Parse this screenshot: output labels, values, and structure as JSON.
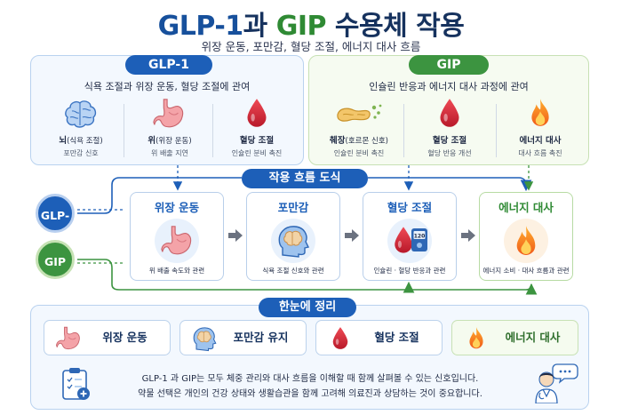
{
  "title": {
    "part1": "GLP-1",
    "part2": "과 ",
    "part3": "GIP",
    "part4": " 수용체 작용"
  },
  "subtitle": "위장 운동, 포만감, 혈당 조절, 에너지 대사 흐름",
  "glp1_panel": {
    "badge": "GLP-1",
    "description": "식욕 조절과 위장 운동, 혈당 조절에 관여",
    "items": [
      {
        "label": "뇌",
        "paren": "(식욕 조절)",
        "sub": "포만감 신호",
        "icon": "brain-icon"
      },
      {
        "label": "위",
        "paren": "(위장 운동)",
        "sub": "위 배출 지연",
        "icon": "stomach-icon"
      },
      {
        "label": "혈당 조절",
        "paren": "",
        "sub": "인슐린 분비 촉진",
        "icon": "blood-drop-icon"
      }
    ]
  },
  "gip_panel": {
    "badge": "GIP",
    "description": "인슐린 반응과 에너지 대사 과정에 관여",
    "items": [
      {
        "label": "췌장",
        "paren": "(호르몬 신호)",
        "sub": "인슐린 분비 촉진",
        "icon": "pancreas-icon"
      },
      {
        "label": "혈당 조절",
        "paren": "",
        "sub": "혈당 반응 개선",
        "icon": "blood-drop-icon"
      },
      {
        "label": "에너지 대사",
        "paren": "",
        "sub": "대사 흐름 촉진",
        "icon": "flame-icon"
      }
    ]
  },
  "flow": {
    "badge": "작용 흐름 도식",
    "glp1_label": "GLP-1",
    "gip_label": "GIP",
    "steps": [
      {
        "title": "위장 운동",
        "sub": "위 배출 속도와 관련",
        "icon": "stomach-icon"
      },
      {
        "title": "포만감",
        "sub": "식욕 조절 신호와 관련",
        "icon": "head-brain-icon"
      },
      {
        "title": "혈당 조절",
        "sub": "인슐린 · 혈당 반응과 관련",
        "icon": "glucose-meter-icon",
        "meter_reading": "120"
      },
      {
        "title": "에너지 대사",
        "sub": "에너지 소비 · 대사 흐름과 관련",
        "icon": "flame-icon"
      }
    ]
  },
  "summary": {
    "badge": "한눈에 정리",
    "boxes": [
      {
        "label": "위장 운동",
        "icon": "stomach-icon"
      },
      {
        "label": "포만감 유지",
        "icon": "head-brain-icon"
      },
      {
        "label": "혈당 조절",
        "icon": "blood-drop-icon"
      },
      {
        "label": "에너지 대사",
        "icon": "flame-icon"
      }
    ],
    "note_line1": "GLP-1 과 GIP는 모두 체중 관리와 대사 흐름을 이해할 때 함께 살펴볼 수 있는 신호입니다.",
    "note_line2": "약물 선택은 개인의 건강 상태와 생활습관을 함께 고려해 의료진과 상담하는 것이 중요합니다."
  },
  "colors": {
    "glp1_blue": "#1d5fb8",
    "gip_green": "#3c9440",
    "title_navy": "#16325e",
    "blood_red": "#d62839",
    "flame_orange": "#f28a1e"
  }
}
